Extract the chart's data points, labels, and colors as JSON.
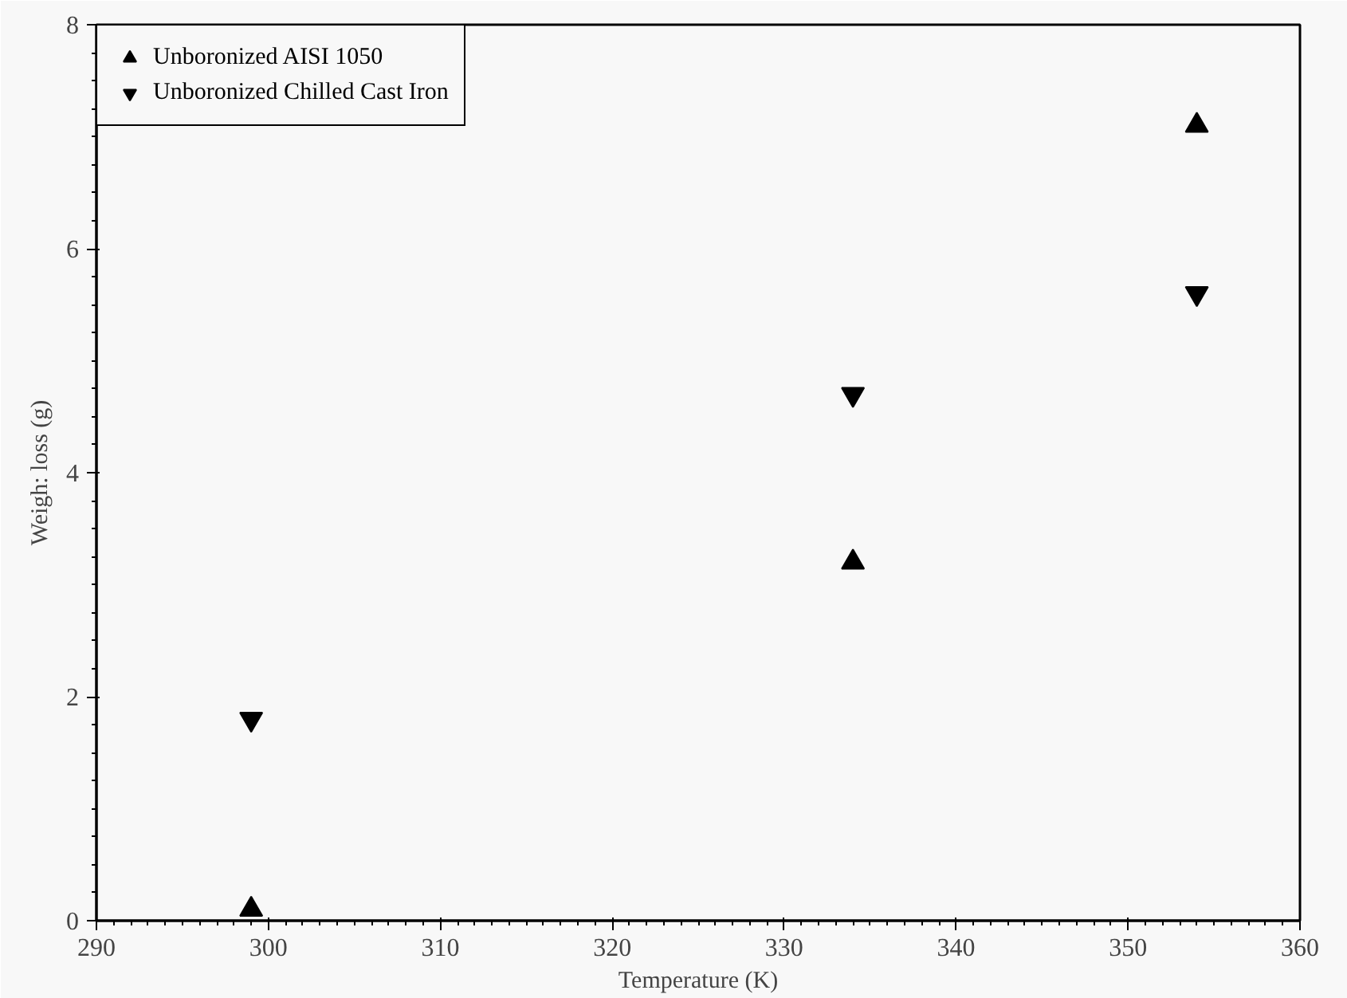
{
  "chart_data": {
    "type": "scatter",
    "xlabel": "Temperature (K)",
    "ylabel": "Weigh: loss (g)",
    "xlim": [
      290,
      360
    ],
    "xticks": [
      290,
      300,
      310,
      320,
      330,
      340,
      350,
      360
    ],
    "ylim": [
      0,
      8
    ],
    "yticks": [
      0,
      2,
      4,
      6,
      8
    ],
    "grid": false,
    "legend": "top left",
    "series": [
      {
        "name": "Unboronized AISI 1050",
        "color": "#000000",
        "marker": "triangle",
        "x": [
          299,
          334,
          354
        ],
        "values": [
          0.1,
          3.2,
          7.1
        ]
      },
      {
        "name": "Unboronized Chilled Cast Iron",
        "color": "#000000",
        "marker": "triangle",
        "x": [
          299,
          334,
          354
        ],
        "values": [
          1.8,
          4.7,
          5.6
        ]
      }
    ]
  }
}
